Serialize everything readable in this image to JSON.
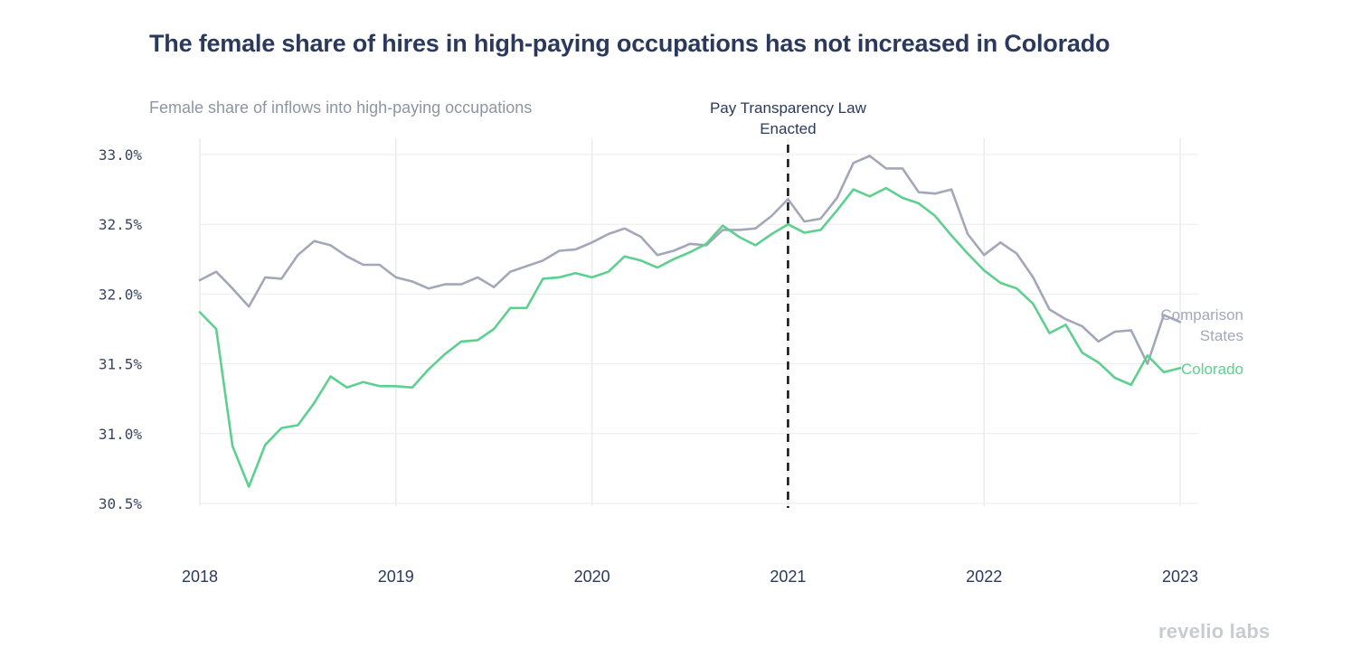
{
  "brand": "revelio labs",
  "chart_data": {
    "type": "line",
    "title": "The female share of hires in high-paying occupations has not increased in Colorado",
    "subtitle": "Female share of inflows into high-paying occupations",
    "xlabel": "",
    "ylabel": "",
    "x_ticks": [
      "2018",
      "2019",
      "2020",
      "2021",
      "2022",
      "2023"
    ],
    "y_ticks": [
      "30.5%",
      "31.0%",
      "31.5%",
      "32.0%",
      "32.5%",
      "33.0%"
    ],
    "xlim": [
      "2018-01",
      "2023-01"
    ],
    "ylim": [
      30.5,
      33.0
    ],
    "grid": true,
    "legend": "direct labels at line ends",
    "annotation": {
      "x": "2021-01",
      "lines": [
        "Pay Transparency Law",
        "Enacted"
      ]
    },
    "x": [
      "2018-01",
      "2018-02",
      "2018-03",
      "2018-04",
      "2018-05",
      "2018-06",
      "2018-07",
      "2018-08",
      "2018-09",
      "2018-10",
      "2018-11",
      "2018-12",
      "2019-01",
      "2019-02",
      "2019-03",
      "2019-04",
      "2019-05",
      "2019-06",
      "2019-07",
      "2019-08",
      "2019-09",
      "2019-10",
      "2019-11",
      "2019-12",
      "2020-01",
      "2020-02",
      "2020-03",
      "2020-04",
      "2020-05",
      "2020-06",
      "2020-07",
      "2020-08",
      "2020-09",
      "2020-10",
      "2020-11",
      "2020-12",
      "2021-01",
      "2021-02",
      "2021-03",
      "2021-04",
      "2021-05",
      "2021-06",
      "2021-07",
      "2021-08",
      "2021-09",
      "2021-10",
      "2021-11",
      "2021-12",
      "2022-01",
      "2022-02",
      "2022-03",
      "2022-04",
      "2022-05",
      "2022-06",
      "2022-07",
      "2022-08",
      "2022-09",
      "2022-10",
      "2022-11",
      "2022-12",
      "2023-01"
    ],
    "series": [
      {
        "name": "Comparison States",
        "color": "#a3a8b8",
        "values": [
          32.1,
          32.16,
          32.04,
          31.91,
          32.12,
          32.11,
          32.28,
          32.38,
          32.35,
          32.27,
          32.21,
          32.21,
          32.12,
          32.09,
          32.04,
          32.07,
          32.07,
          32.12,
          32.05,
          32.16,
          32.2,
          32.24,
          32.31,
          32.32,
          32.37,
          32.43,
          32.47,
          32.41,
          32.28,
          32.31,
          32.36,
          32.35,
          32.46,
          32.46,
          32.47,
          32.56,
          32.68,
          32.52,
          32.54,
          32.69,
          32.94,
          32.99,
          32.9,
          32.9,
          32.73,
          32.72,
          32.75,
          32.43,
          32.28,
          32.37,
          32.29,
          32.12,
          31.89,
          31.82,
          31.77,
          31.66,
          31.73,
          31.74,
          31.5,
          31.85,
          31.8
        ]
      },
      {
        "name": "Colorado",
        "color": "#5dd08f",
        "values": [
          31.87,
          31.75,
          30.91,
          30.62,
          30.92,
          31.04,
          31.06,
          31.22,
          31.41,
          31.33,
          31.37,
          31.34,
          31.34,
          31.33,
          31.46,
          31.57,
          31.66,
          31.67,
          31.75,
          31.9,
          31.9,
          32.11,
          32.12,
          32.15,
          32.12,
          32.16,
          32.27,
          32.24,
          32.19,
          32.25,
          32.3,
          32.36,
          32.49,
          32.41,
          32.35,
          32.43,
          32.5,
          32.44,
          32.46,
          32.6,
          32.75,
          32.7,
          32.76,
          32.69,
          32.65,
          32.56,
          32.42,
          32.29,
          32.17,
          32.08,
          32.04,
          31.93,
          31.72,
          31.78,
          31.58,
          31.51,
          31.4,
          31.35,
          31.56,
          31.44,
          31.47
        ]
      }
    ],
    "series_labels": {
      "Comparison States": [
        "Comparison",
        "States"
      ],
      "Colorado": [
        "Colorado"
      ]
    }
  }
}
